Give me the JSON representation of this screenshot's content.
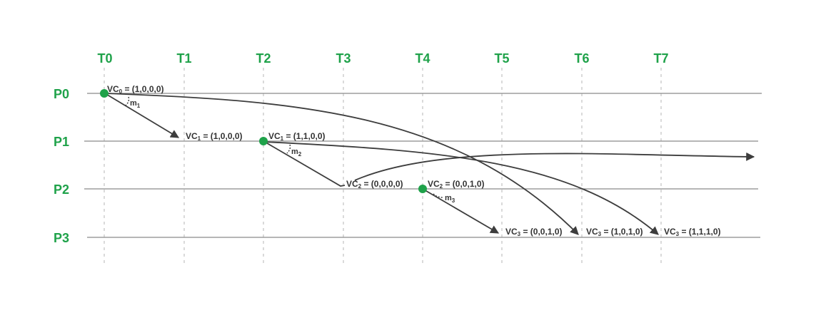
{
  "colors": {
    "accent": "#1fa24a",
    "line": "#8a8a8a",
    "arrow": "#3d3d3d",
    "grid": "#b5b5b5",
    "text": "#333333"
  },
  "times": [
    "T0",
    "T1",
    "T2",
    "T3",
    "T4",
    "T5",
    "T6",
    "T7"
  ],
  "processes": [
    "P0",
    "P1",
    "P2",
    "P3"
  ],
  "events": [
    {
      "id": "e-p0-t0",
      "base": "VC",
      "sub": "0",
      "value": " = (1,0,0,0)"
    },
    {
      "id": "e-p1-t1",
      "base": "VC",
      "sub": "1",
      "value": " = (1,0,0,0)"
    },
    {
      "id": "e-p1-t2",
      "base": "VC",
      "sub": "1",
      "value": " = (1,1,0,0)"
    },
    {
      "id": "e-p2-t3",
      "base": "VC",
      "sub": "2",
      "value": " = (0,0,0,0)"
    },
    {
      "id": "e-p2-t4",
      "base": "VC",
      "sub": "2",
      "value": " = (0,0,1,0)"
    },
    {
      "id": "e-p3-t5",
      "base": "VC",
      "sub": "3",
      "value": " = (0,0,1,0)"
    },
    {
      "id": "e-p3-t6",
      "base": "VC",
      "sub": "3",
      "value": " = (1,0,1,0)"
    },
    {
      "id": "e-p3-t7",
      "base": "VC",
      "sub": "3",
      "value": " = (1,1,1,0)"
    }
  ],
  "messages": [
    {
      "base": "m",
      "sub": "1"
    },
    {
      "base": "m",
      "sub": "2"
    },
    {
      "base": "m",
      "sub": "3"
    }
  ]
}
